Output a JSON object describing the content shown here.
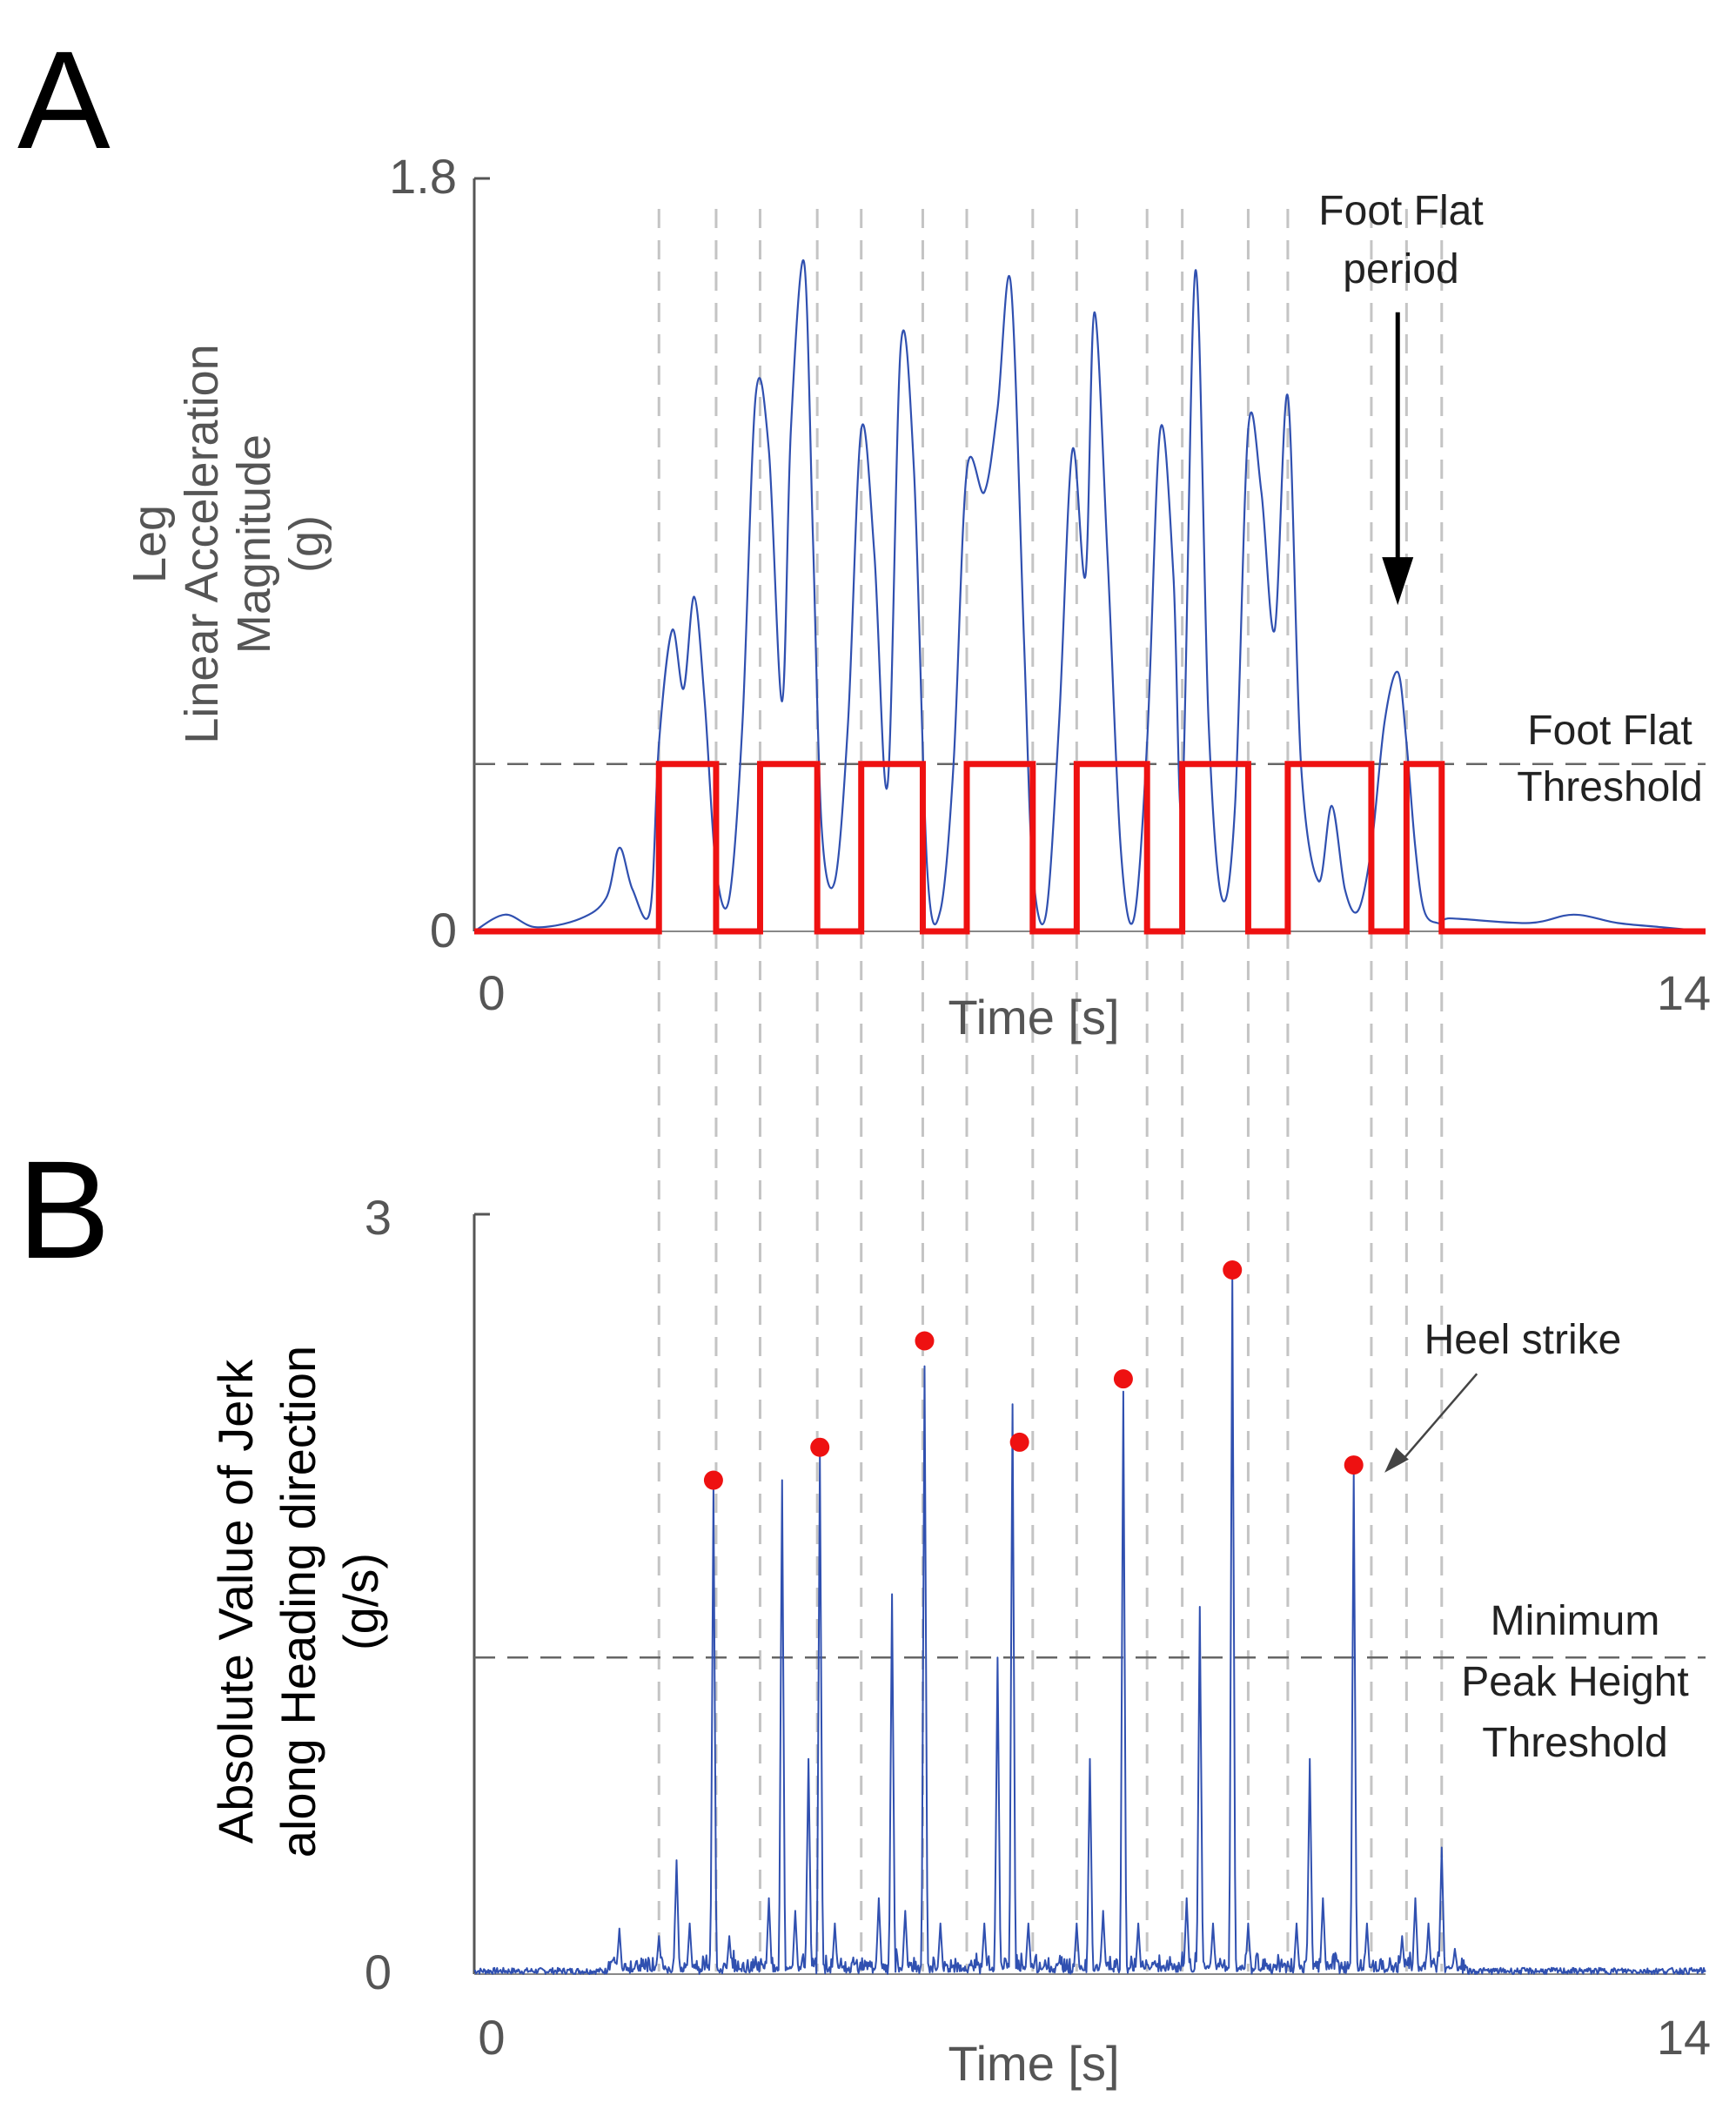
{
  "chart_data": [
    {
      "type": "line",
      "panel_label": "A",
      "ylabel_lines": [
        "Leg",
        "Linear Acceleration",
        "Magnitude",
        "(g)"
      ],
      "xlabel": "Time [s]",
      "xlim": [
        0,
        14
      ],
      "ylim": [
        0,
        1.8
      ],
      "x_tick_labels": [
        "0",
        "14"
      ],
      "y_tick_labels": [
        "0",
        "1.8"
      ],
      "threshold": {
        "value": 0.4,
        "label_lines": [
          "Foot Flat",
          "Threshold"
        ]
      },
      "annotation": {
        "lines": [
          "Foot Flat",
          "period"
        ],
        "x": 10.5,
        "y_text": 1.72,
        "arrow_from": 1.48,
        "arrow_to": 0.78
      },
      "step_periods": [
        [
          2.1,
          2.75
        ],
        [
          3.25,
          3.9
        ],
        [
          4.4,
          5.1
        ],
        [
          5.6,
          6.35
        ],
        [
          6.85,
          7.65
        ],
        [
          8.05,
          8.8
        ],
        [
          9.25,
          10.2
        ],
        [
          10.6,
          11.0
        ]
      ],
      "step_level": 0.4,
      "colors": {
        "signal": "#3050b0",
        "step": "#ee1111",
        "threshold": "#666666",
        "axis": "#555555"
      },
      "series": [
        {
          "name": "Leg Linear Acceleration Magnitude",
          "x": [
            0,
            0.35,
            0.7,
            1.2,
            1.5,
            1.65,
            1.8,
            2.0,
            2.1,
            2.25,
            2.38,
            2.5,
            2.62,
            2.75,
            2.9,
            3.05,
            3.2,
            3.35,
            3.5,
            3.6,
            3.75,
            3.85,
            3.95,
            4.1,
            4.25,
            4.4,
            4.55,
            4.7,
            4.85,
            5.0,
            5.15,
            5.3,
            5.45,
            5.6,
            5.8,
            5.95,
            6.1,
            6.25,
            6.35,
            6.5,
            6.65,
            6.8,
            6.95,
            7.05,
            7.2,
            7.35,
            7.5,
            7.65,
            7.8,
            7.95,
            8.05,
            8.2,
            8.35,
            8.5,
            8.65,
            8.8,
            8.95,
            9.1,
            9.25,
            9.4,
            9.6,
            9.75,
            9.9,
            10.05,
            10.2,
            10.35,
            10.5,
            10.6,
            10.7,
            10.8,
            10.95,
            11.05,
            11.2,
            12.0,
            12.5,
            13.0,
            13.5,
            14.0
          ],
          "y": [
            0,
            0.04,
            0.01,
            0.03,
            0.08,
            0.2,
            0.1,
            0.05,
            0.45,
            0.72,
            0.58,
            0.8,
            0.55,
            0.15,
            0.08,
            0.5,
            1.28,
            1.15,
            0.55,
            1.2,
            1.6,
            0.95,
            0.25,
            0.12,
            0.5,
            1.2,
            0.9,
            0.35,
            1.4,
            1.1,
            0.15,
            0.05,
            0.4,
            1.1,
            1.05,
            1.25,
            1.55,
            0.7,
            0.15,
            0.04,
            0.5,
            1.15,
            0.85,
            1.48,
            0.9,
            0.2,
            0.03,
            0.45,
            1.2,
            0.85,
            0.3,
            1.58,
            0.5,
            0.08,
            0.3,
            1.2,
            1.05,
            0.72,
            1.28,
            0.4,
            0.12,
            0.3,
            0.1,
            0.05,
            0.2,
            0.5,
            0.62,
            0.45,
            0.2,
            0.05,
            0.02,
            0.03,
            0.03,
            0.02,
            0.04,
            0.02,
            0.01,
            0.0
          ]
        }
      ]
    },
    {
      "type": "line",
      "panel_label": "B",
      "ylabel_lines": [
        "Absolute Value of Jerk",
        "along Heading direction",
        "(g/s)"
      ],
      "xlabel": "Time [s]",
      "xlim": [
        0,
        14
      ],
      "ylim": [
        0,
        3
      ],
      "x_tick_labels": [
        "0",
        "14"
      ],
      "y_tick_labels": [
        "0",
        "3"
      ],
      "threshold": {
        "value": 1.25,
        "label_lines": [
          "Minimum",
          "Peak Height",
          "Threshold"
        ]
      },
      "annotation": {
        "lines": [
          "Heel strike"
        ],
        "x_text": 11.9,
        "y_text": 2.5,
        "arrow_from": [
          11.4,
          2.37
        ],
        "arrow_to": [
          10.35,
          1.98
        ]
      },
      "baseline_noise": 0.025,
      "colors": {
        "signal": "#3050b0",
        "peak": "#ee1111",
        "threshold": "#666666",
        "axis": "#555555"
      },
      "spikes": [
        {
          "x": 1.65,
          "h": 0.18
        },
        {
          "x": 2.1,
          "h": 0.15
        },
        {
          "x": 2.3,
          "h": 0.45
        },
        {
          "x": 2.45,
          "h": 0.2
        },
        {
          "x": 2.72,
          "h": 1.92
        },
        {
          "x": 2.9,
          "h": 0.15
        },
        {
          "x": 3.35,
          "h": 0.3
        },
        {
          "x": 3.5,
          "h": 1.95
        },
        {
          "x": 3.65,
          "h": 0.25
        },
        {
          "x": 3.8,
          "h": 0.85
        },
        {
          "x": 3.93,
          "h": 2.05
        },
        {
          "x": 4.1,
          "h": 0.2
        },
        {
          "x": 4.6,
          "h": 0.3
        },
        {
          "x": 4.75,
          "h": 1.5
        },
        {
          "x": 4.9,
          "h": 0.25
        },
        {
          "x": 5.12,
          "h": 2.4
        },
        {
          "x": 5.3,
          "h": 0.2
        },
        {
          "x": 5.8,
          "h": 0.2
        },
        {
          "x": 5.95,
          "h": 1.25
        },
        {
          "x": 6.12,
          "h": 2.25
        },
        {
          "x": 6.3,
          "h": 0.2
        },
        {
          "x": 6.85,
          "h": 0.2
        },
        {
          "x": 7.0,
          "h": 0.85
        },
        {
          "x": 7.15,
          "h": 0.25
        },
        {
          "x": 7.38,
          "h": 2.3
        },
        {
          "x": 7.55,
          "h": 0.2
        },
        {
          "x": 8.1,
          "h": 0.3
        },
        {
          "x": 8.25,
          "h": 1.45
        },
        {
          "x": 8.4,
          "h": 0.2
        },
        {
          "x": 8.62,
          "h": 2.75
        },
        {
          "x": 8.8,
          "h": 0.2
        },
        {
          "x": 9.35,
          "h": 0.2
        },
        {
          "x": 9.5,
          "h": 0.85
        },
        {
          "x": 9.65,
          "h": 0.3
        },
        {
          "x": 10.0,
          "h": 1.98
        },
        {
          "x": 10.15,
          "h": 0.2
        },
        {
          "x": 10.55,
          "h": 0.15
        },
        {
          "x": 10.7,
          "h": 0.3
        },
        {
          "x": 10.85,
          "h": 0.2
        },
        {
          "x": 11.0,
          "h": 0.5
        },
        {
          "x": 11.15,
          "h": 0.1
        }
      ],
      "heel_strikes": [
        {
          "x": 2.72,
          "y": 1.95
        },
        {
          "x": 3.93,
          "y": 2.08
        },
        {
          "x": 5.12,
          "y": 2.5
        },
        {
          "x": 6.2,
          "y": 2.1
        },
        {
          "x": 7.38,
          "y": 2.35
        },
        {
          "x": 8.62,
          "y": 2.78
        },
        {
          "x": 10.0,
          "y": 2.01
        }
      ]
    }
  ],
  "event_lines_x": [
    2.1,
    2.75,
    3.25,
    3.9,
    4.4,
    5.1,
    5.6,
    6.35,
    6.85,
    7.65,
    8.05,
    8.8,
    9.25,
    10.2,
    10.6,
    11.0
  ]
}
